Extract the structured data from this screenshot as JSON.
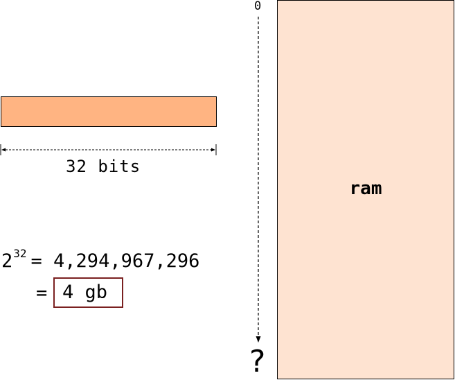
{
  "register": {
    "width_label": "32 bits",
    "fill_color": "#ffb482"
  },
  "math": {
    "base": "2",
    "exponent": "32",
    "result": "= 4,294,967,296",
    "equals": "=",
    "boxed_result": "4 gb",
    "box_color": "#7a2020"
  },
  "address_axis": {
    "start_label": "0",
    "end_label": "?"
  },
  "ram": {
    "label": "ram",
    "fill_color": "#fee3d1"
  }
}
